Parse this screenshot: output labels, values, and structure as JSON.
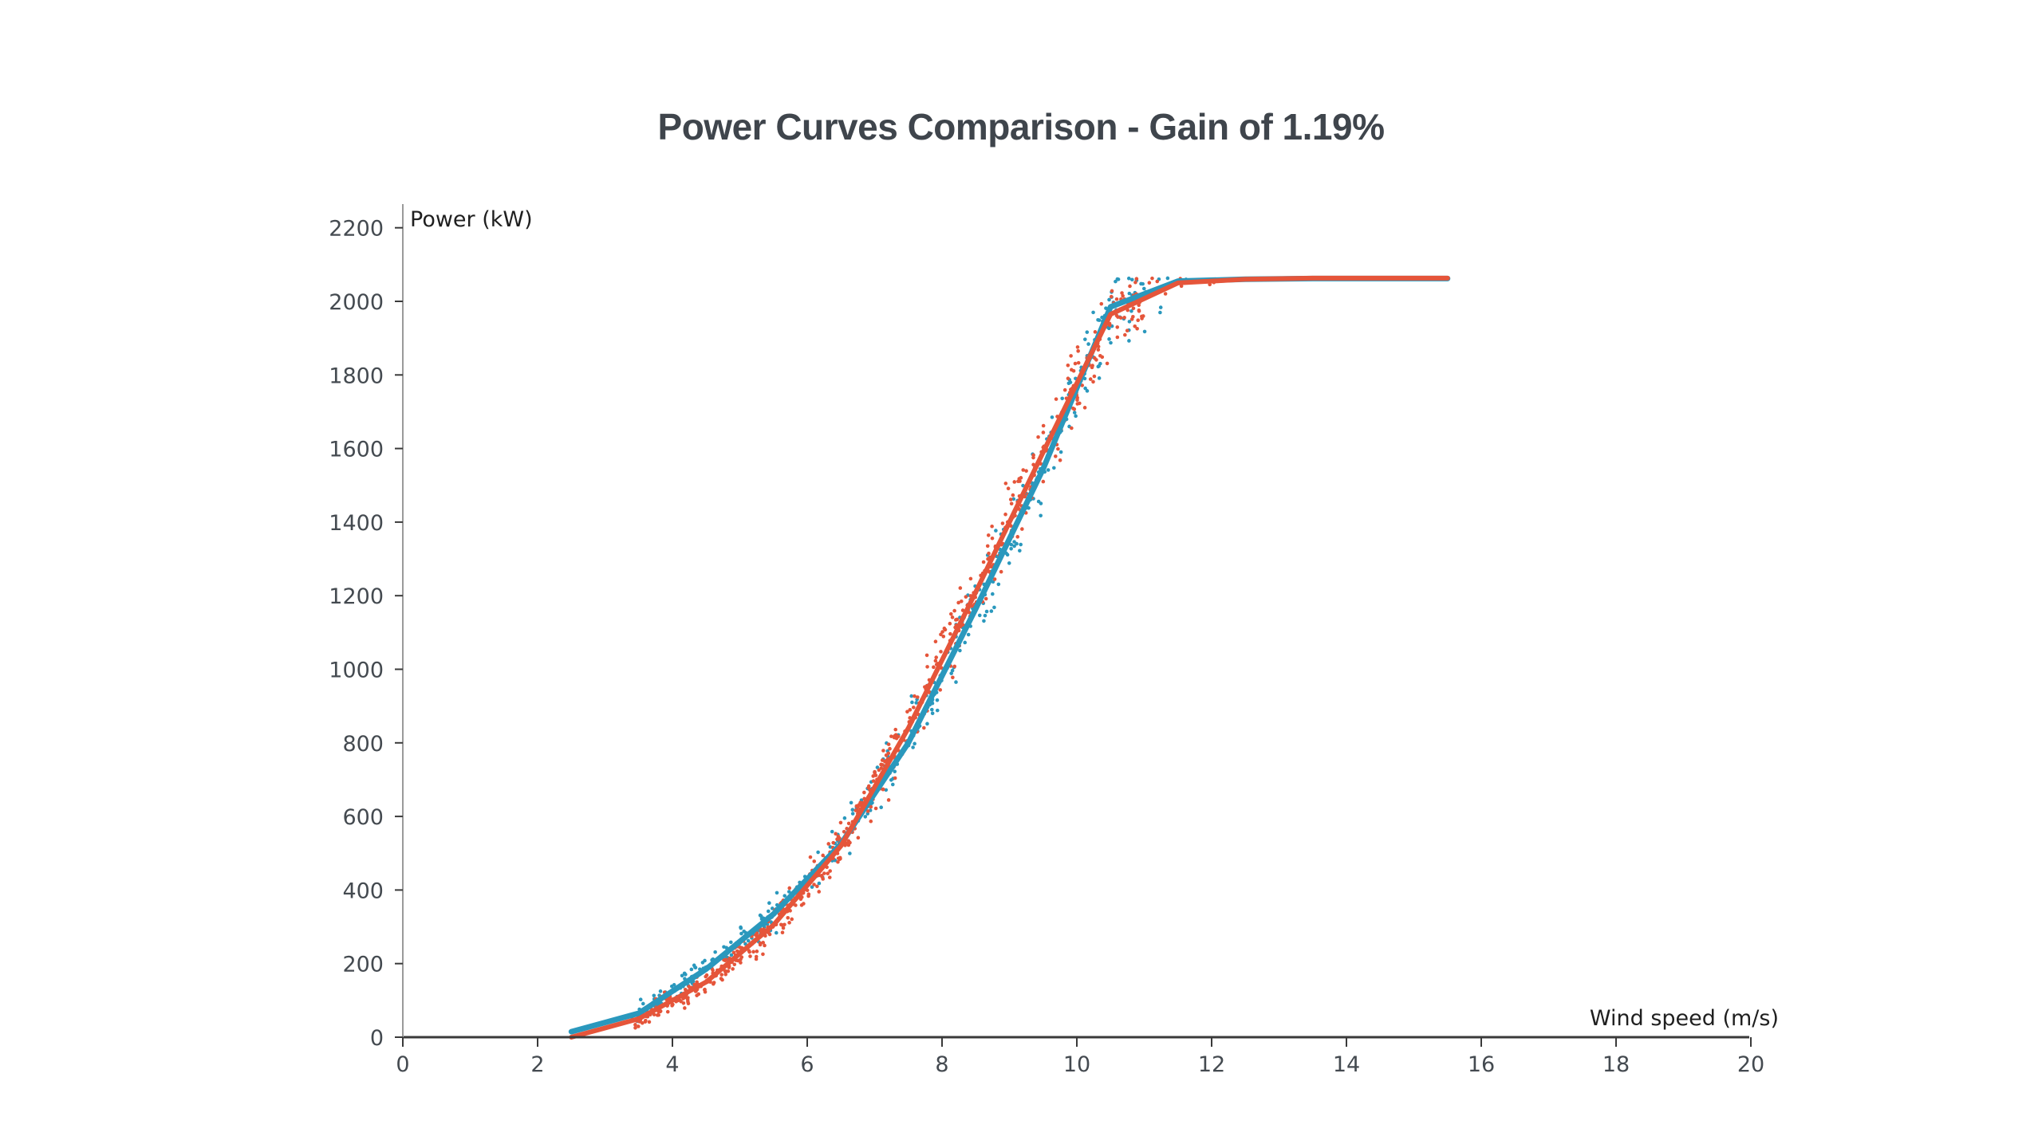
{
  "chart_data": {
    "type": "line",
    "title": "Power Curves Comparison - Gain of 1.19%",
    "xlabel": "Wind speed (m/s)",
    "ylabel": "Power (kW)",
    "xlim": [
      0,
      20
    ],
    "ylim": [
      0,
      2200
    ],
    "x_ticks": [
      0,
      2,
      4,
      6,
      8,
      10,
      12,
      14,
      16,
      18,
      20
    ],
    "y_ticks": [
      0,
      200,
      400,
      600,
      800,
      1000,
      1200,
      1400,
      1600,
      1800,
      2000,
      2200
    ],
    "grid": false,
    "legend": "none",
    "series": [
      {
        "color": "#2a98bd",
        "points": [
          [
            2.5,
            15
          ],
          [
            3.5,
            65
          ],
          [
            4.5,
            185
          ],
          [
            5.5,
            335
          ],
          [
            6.5,
            525
          ],
          [
            7.5,
            800
          ],
          [
            8.5,
            1165
          ],
          [
            9.5,
            1545
          ],
          [
            10.5,
            1985
          ],
          [
            11.5,
            2055
          ],
          [
            12.5,
            2060
          ],
          [
            13.5,
            2062
          ],
          [
            14.5,
            2062
          ],
          [
            15.5,
            2062
          ]
        ]
      },
      {
        "color": "#e5553a",
        "points": [
          [
            2.5,
            0
          ],
          [
            3.5,
            50
          ],
          [
            4.5,
            150
          ],
          [
            5.5,
            305
          ],
          [
            6.5,
            520
          ],
          [
            7.5,
            840
          ],
          [
            8.5,
            1210
          ],
          [
            9.5,
            1590
          ],
          [
            10.5,
            1965
          ],
          [
            11.5,
            2050
          ],
          [
            12.5,
            2060
          ],
          [
            13.5,
            2063
          ],
          [
            14.5,
            2063
          ],
          [
            15.5,
            2063
          ]
        ]
      }
    ],
    "scatter_colors": [
      "#2a98bd",
      "#e5553a"
    ]
  }
}
